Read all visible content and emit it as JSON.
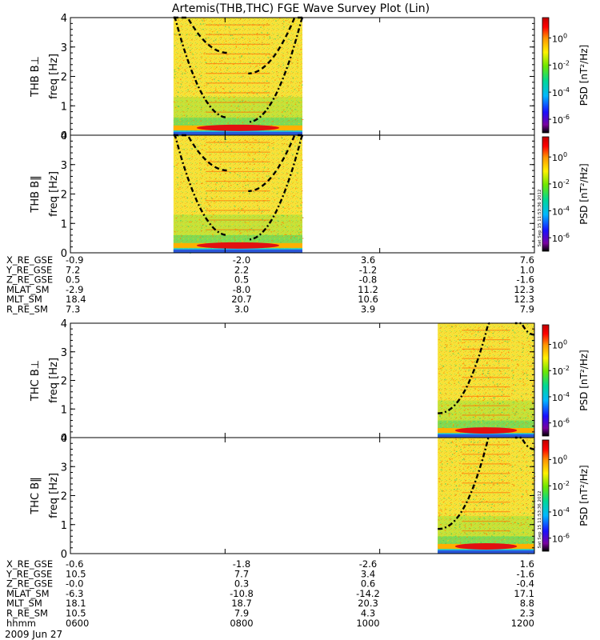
{
  "title": "Artemis(THB,THC) FGE Wave Survey Plot (Lin)",
  "timestamp": "Sat Sep 15 11:53:36 2012",
  "colorbar": {
    "label": "PSD [nT²/Hz]",
    "ticks": [
      {
        "label": "10",
        "exp": "0",
        "value": 0
      },
      {
        "label": "10",
        "exp": "-2",
        "value": -2
      },
      {
        "label": "10",
        "exp": "-4",
        "value": -4
      },
      {
        "label": "10",
        "exp": "-6",
        "value": -6
      }
    ],
    "range_log10": [
      -7,
      1.5
    ],
    "colors": [
      "#000000",
      "#7a00a0",
      "#1a10ff",
      "#00b7ff",
      "#00d896",
      "#6ee800",
      "#fff200",
      "#ff9500",
      "#ff0000",
      "#c00000"
    ]
  },
  "chart_data": [
    {
      "type": "heatmap",
      "panel": "THB B⊥",
      "ylabel": "freq [Hz]",
      "ylim": [
        0,
        4
      ],
      "yticks": [
        0,
        1,
        2,
        3,
        4
      ],
      "x_unit": "hhmm",
      "xlim": [
        "0600",
        "1200"
      ],
      "data_coverage": [
        "0720",
        "0900"
      ],
      "dominant_line_hz": 0.25,
      "overlay_curves": "gyrofrequency curves (dash-dot, dashed)"
    },
    {
      "type": "heatmap",
      "panel": "THB B‖",
      "ylabel": "freq [Hz]",
      "ylim": [
        0,
        4
      ],
      "yticks": [
        0,
        1,
        2,
        3,
        4
      ],
      "x_unit": "hhmm",
      "xlim": [
        "0600",
        "1200"
      ],
      "data_coverage": [
        "0720",
        "0900"
      ],
      "dominant_line_hz": 0.25
    },
    {
      "type": "heatmap",
      "panel": "THC B⊥",
      "ylabel": "freq [Hz]",
      "ylim": [
        0,
        4
      ],
      "yticks": [
        0,
        1,
        2,
        3,
        4
      ],
      "x_unit": "hhmm",
      "xlim": [
        "0600",
        "1200"
      ],
      "data_coverage": [
        "1045",
        "1200"
      ],
      "dominant_line_hz": 0.25
    },
    {
      "type": "heatmap",
      "panel": "THC B‖",
      "ylabel": "freq [Hz]",
      "ylim": [
        0,
        4
      ],
      "yticks": [
        0,
        1,
        2,
        3,
        4
      ],
      "x_unit": "hhmm",
      "xlim": [
        "0600",
        "1200"
      ],
      "data_coverage": [
        "1045",
        "1200"
      ],
      "dominant_line_hz": 0.25
    }
  ],
  "ephemeris_thb": {
    "rows": [
      {
        "label": "X_RE_GSE",
        "values": [
          "-0.9",
          "-2.0",
          "3.6",
          "7.6"
        ]
      },
      {
        "label": "Y_RE_GSE",
        "values": [
          "7.2",
          "2.2",
          "-1.2",
          "1.0"
        ]
      },
      {
        "label": "Z_RE_GSE",
        "values": [
          "0.5",
          "0.5",
          "-0.8",
          "-1.6"
        ]
      },
      {
        "label": "MLAT_SM",
        "values": [
          "-2.9",
          "-8.0",
          "11.2",
          "12.3"
        ]
      },
      {
        "label": "MLT_SM",
        "values": [
          "18.4",
          "20.7",
          "10.6",
          "12.3"
        ]
      },
      {
        "label": "R_RE_SM",
        "values": [
          "7.3",
          "3.0",
          "3.9",
          "7.9"
        ]
      }
    ]
  },
  "ephemeris_thc": {
    "rows": [
      {
        "label": "X_RE_GSE",
        "values": [
          "-0.6",
          "-1.8",
          "-2.6",
          "1.6"
        ]
      },
      {
        "label": "Y_RE_GSE",
        "values": [
          "10.5",
          "7.7",
          "3.4",
          "-1.6"
        ]
      },
      {
        "label": "Z_RE_GSE",
        "values": [
          "-0.0",
          "0.3",
          "0.6",
          "-0.4"
        ]
      },
      {
        "label": "MLAT_SM",
        "values": [
          "-6.3",
          "-10.8",
          "-14.2",
          "17.1"
        ]
      },
      {
        "label": "MLT_SM",
        "values": [
          "18.1",
          "18.7",
          "20.3",
          "8.8"
        ]
      },
      {
        "label": "R_RE_SM",
        "values": [
          "10.5",
          "7.9",
          "4.3",
          "2.3"
        ]
      },
      {
        "label": "hhmm",
        "values": [
          "0600",
          "0800",
          "1000",
          "1200"
        ]
      }
    ]
  },
  "date_label": "2009 Jun 27"
}
